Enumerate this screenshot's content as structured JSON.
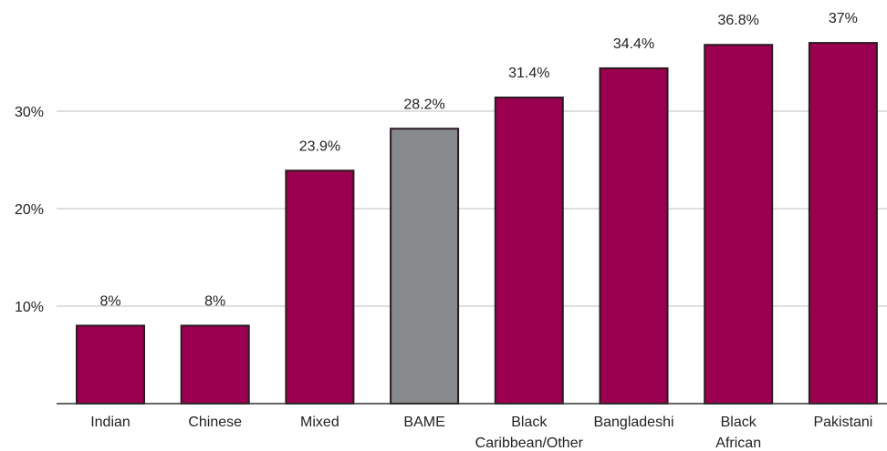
{
  "chart_data": {
    "type": "bar",
    "title": "",
    "xlabel": "",
    "ylabel": "",
    "ylim": [
      0,
      40
    ],
    "yticks": [
      10,
      20,
      30
    ],
    "ytick_labels": [
      "10%",
      "20%",
      "30%"
    ],
    "grid": true,
    "categories": [
      [
        "Indian"
      ],
      [
        "Chinese"
      ],
      [
        "Mixed"
      ],
      [
        "BAME"
      ],
      [
        "Black",
        "Caribbean/Other"
      ],
      [
        "Bangladeshi"
      ],
      [
        "Black",
        "African"
      ],
      [
        "Pakistani"
      ]
    ],
    "values": [
      8,
      8,
      23.9,
      28.2,
      31.4,
      34.4,
      36.8,
      37
    ],
    "value_labels": [
      "8%",
      "8%",
      "23.9%",
      "28.2%",
      "31.4%",
      "34.4%",
      "36.8%",
      "37%"
    ],
    "highlight_index": 3,
    "colors": {
      "bar": "#9b0050",
      "highlight": "#868a8c",
      "bar_edge": "#2a1a20",
      "grid": "#bfbfbf",
      "axis": "#333333"
    }
  }
}
